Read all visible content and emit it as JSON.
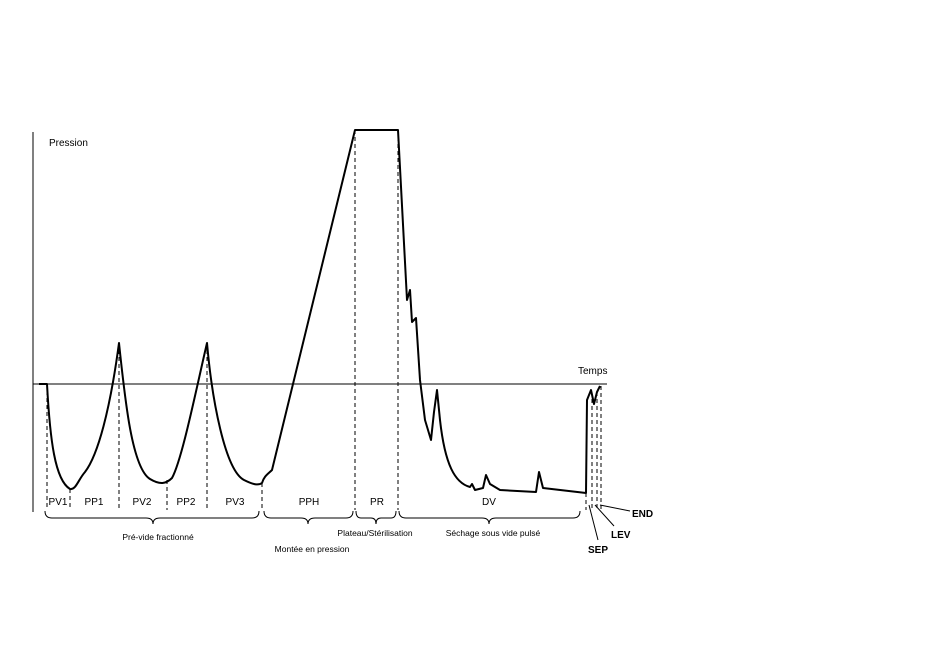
{
  "axes": {
    "y_label": "Pression",
    "x_label": "Temps"
  },
  "phases": [
    "PV1",
    "PP1",
    "PV2",
    "PP2",
    "PV3",
    "PPH",
    "PR",
    "DV"
  ],
  "groups": [
    "Pré-vide fractionné",
    "Montée en pression",
    "Plateau/Stérilisation",
    "Séchage sous vide pulsé"
  ],
  "end_steps": [
    "SEP",
    "LEV",
    "END"
  ]
}
